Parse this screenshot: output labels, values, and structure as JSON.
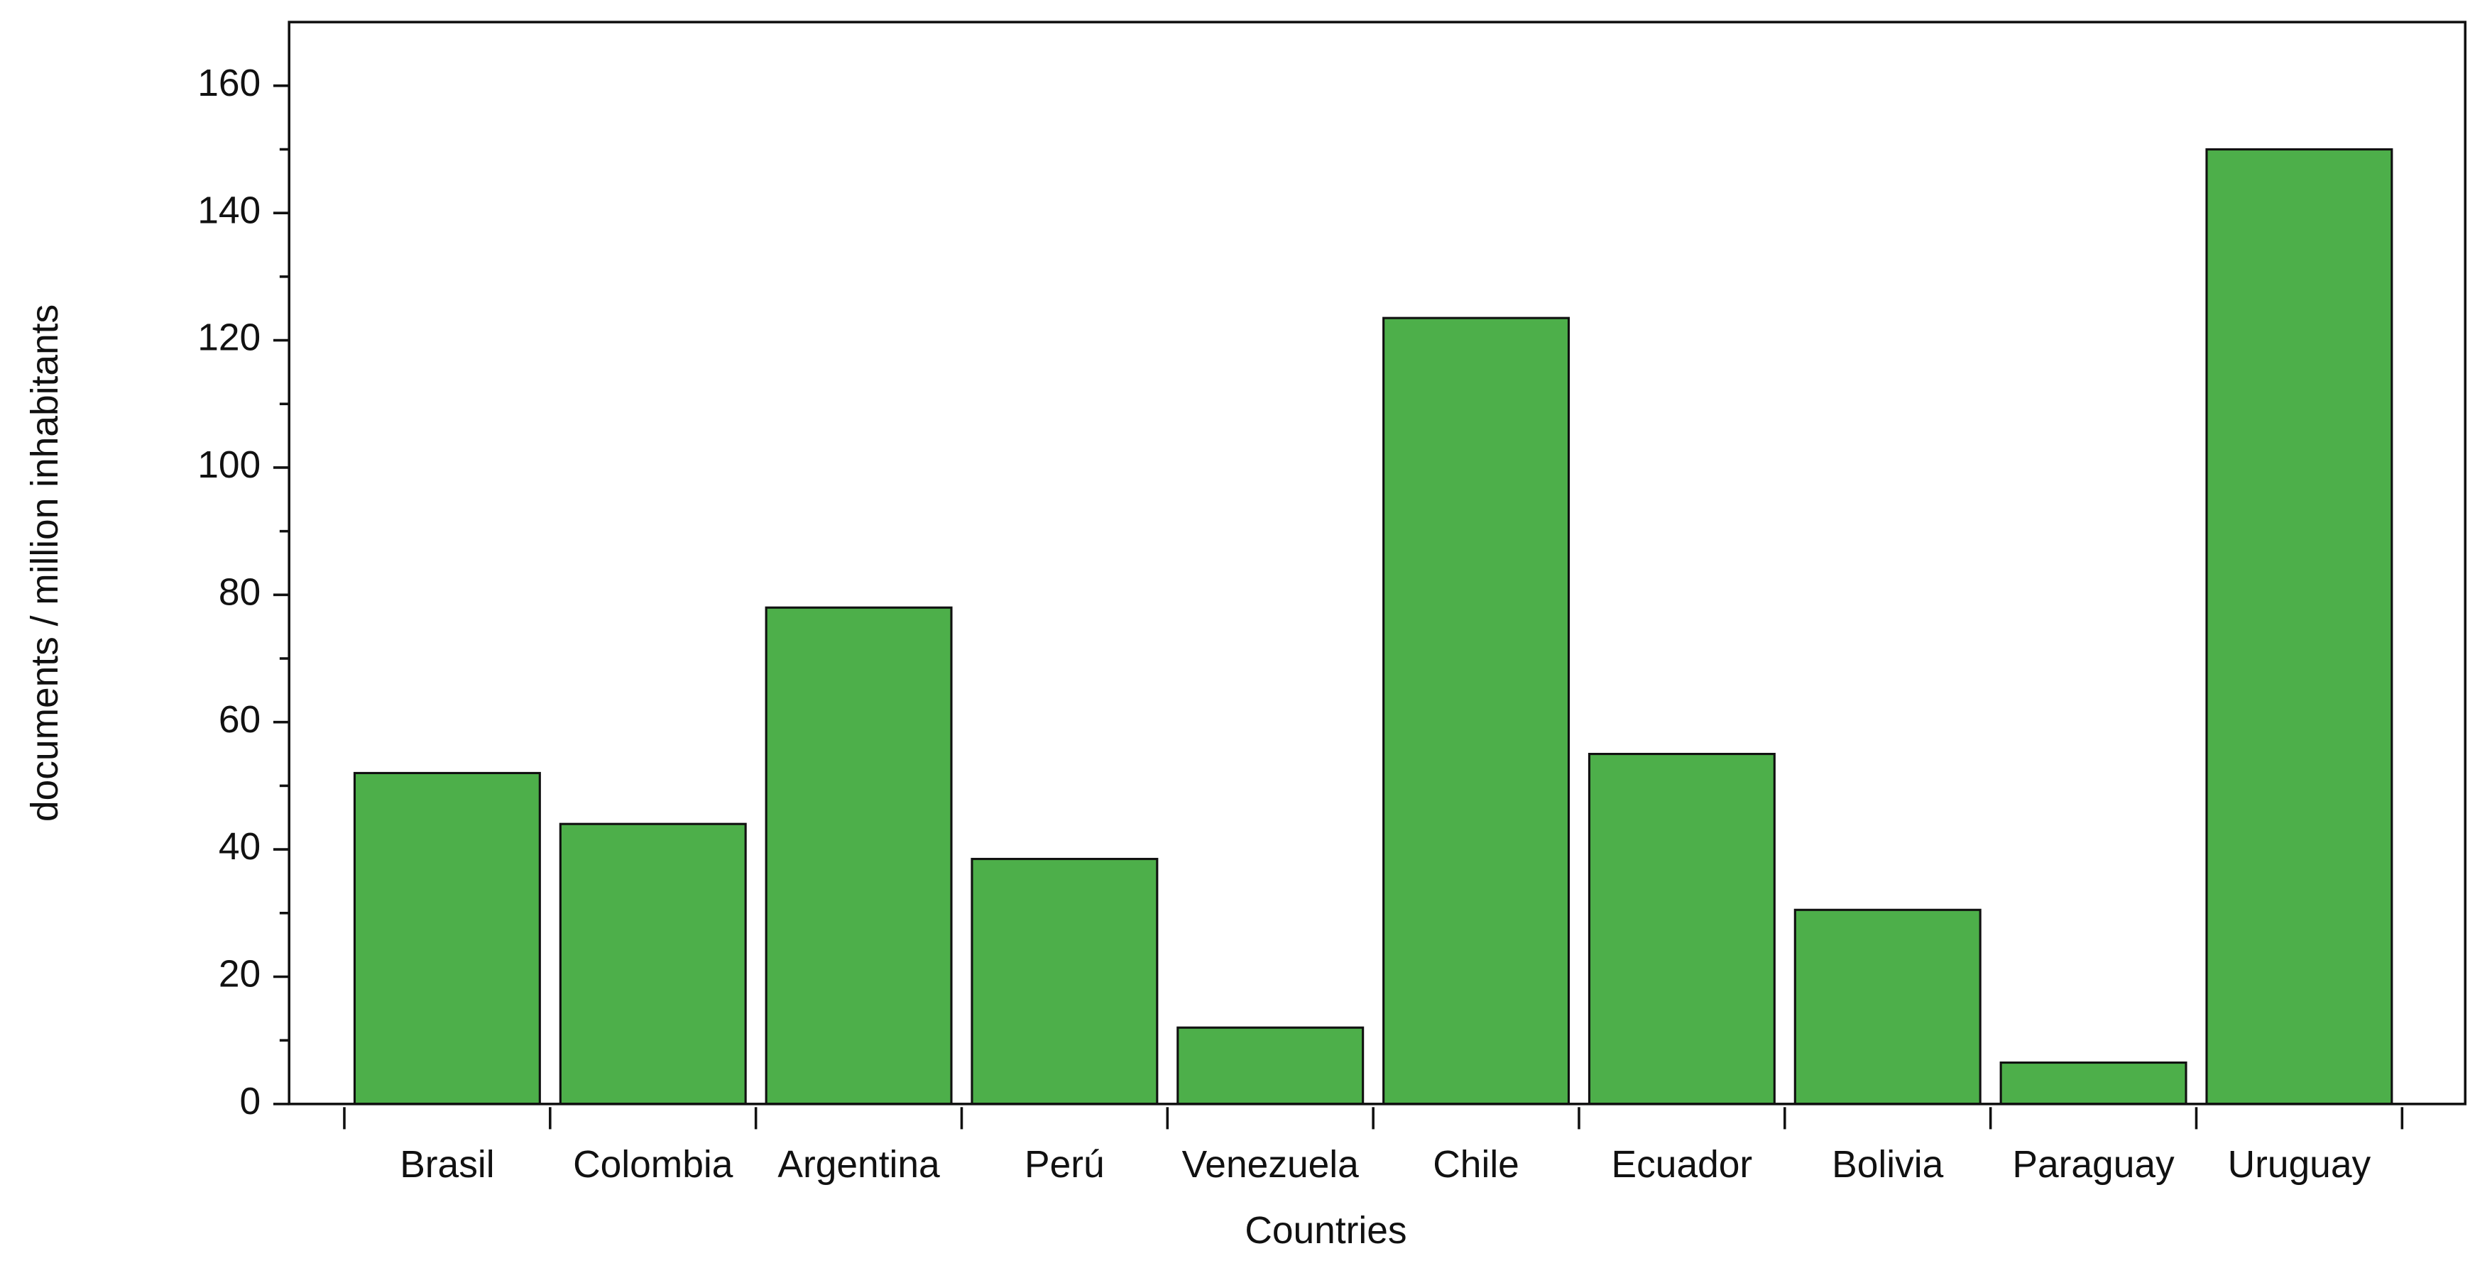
{
  "chart_data": {
    "type": "bar",
    "x_label": "Countries",
    "y_label": "documents / million inhabitants",
    "categories": [
      "Brasil",
      "Colombia",
      "Argentina",
      "Perú",
      "Venezuela",
      "Chile",
      "Ecuador",
      "Bolivia",
      "Paraguay",
      "Uruguay"
    ],
    "values": [
      52,
      44,
      78,
      38.5,
      12,
      123.5,
      55,
      30.5,
      6.5,
      150
    ],
    "color": "#4daf4a",
    "ylim": [
      0,
      170
    ],
    "yticks": [
      0,
      20,
      40,
      60,
      80,
      100,
      120,
      140,
      160
    ],
    "grid": false
  }
}
